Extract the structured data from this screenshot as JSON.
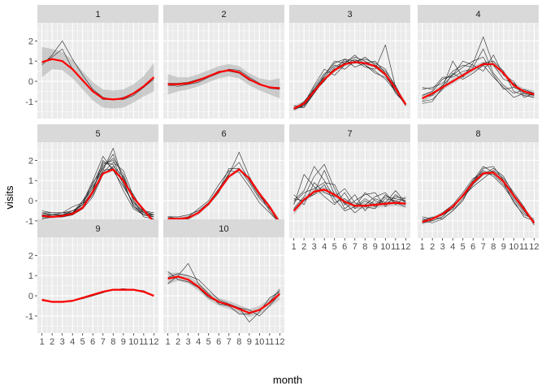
{
  "chart_data": {
    "type": "line",
    "layout": "facet_wrap",
    "xlabel": "month",
    "ylabel": "visits",
    "x": [
      1,
      2,
      3,
      4,
      5,
      6,
      7,
      8,
      9,
      10,
      11,
      12
    ],
    "x_tick_labels": [
      "1",
      "2",
      "3",
      "4",
      "5",
      "6",
      "7",
      "8",
      "9",
      "10",
      "11",
      "12"
    ],
    "y_ticks": [
      -1,
      0,
      1,
      2
    ],
    "ylim": [
      -1.85,
      2.9
    ],
    "xlim": [
      0.55,
      12.45
    ],
    "grid": true,
    "colors": {
      "panel_bg": "#ebebeb",
      "grid": "#ffffff",
      "strip_bg": "#d9d9d9",
      "individual_line": "#262626",
      "smooth_line": "#ff0000",
      "ribbon": "#b3b3b3"
    },
    "panels": [
      {
        "label": "1",
        "individual_lines": [
          [
            0.8,
            1.3,
            2.0,
            1.1,
            0.3,
            -0.4,
            -0.8,
            -0.9,
            -0.9,
            -0.7,
            -0.3,
            0.2
          ],
          [
            0.9,
            1.2,
            1.6,
            0.6,
            0.0,
            -0.5,
            -0.9,
            -0.9,
            -0.8,
            -0.6,
            -0.3,
            0.1
          ]
        ],
        "smooth": [
          0.95,
          1.1,
          1.0,
          0.6,
          0.05,
          -0.5,
          -0.85,
          -0.9,
          -0.85,
          -0.6,
          -0.25,
          0.2
        ],
        "ribbon_halfwidth": [
          0.75,
          0.5,
          0.45,
          0.45,
          0.45,
          0.45,
          0.45,
          0.45,
          0.45,
          0.45,
          0.5,
          0.7
        ]
      },
      {
        "label": "2",
        "individual_lines": [
          [
            -0.2,
            -0.25,
            -0.15,
            -0.05,
            0.2,
            0.4,
            0.6,
            0.55,
            0.2,
            -0.1,
            -0.35,
            -0.4
          ],
          [
            -0.1,
            -0.1,
            -0.05,
            0.1,
            0.25,
            0.5,
            0.5,
            0.4,
            0.05,
            -0.15,
            -0.3,
            -0.3
          ]
        ],
        "smooth": [
          -0.15,
          -0.15,
          -0.1,
          0.05,
          0.25,
          0.45,
          0.55,
          0.45,
          0.1,
          -0.15,
          -0.3,
          -0.35
        ],
        "ribbon_halfwidth": [
          0.5,
          0.35,
          0.3,
          0.3,
          0.3,
          0.3,
          0.3,
          0.3,
          0.3,
          0.3,
          0.35,
          0.5
        ]
      },
      {
        "label": "3",
        "individual_lines": [
          [
            -1.4,
            -1.2,
            -0.4,
            0.3,
            0.9,
            1.1,
            1.0,
            0.7,
            0.6,
            1.8,
            -0.3,
            -1.2
          ],
          [
            -1.3,
            -1.3,
            -0.6,
            0.1,
            0.6,
            0.9,
            1.2,
            1.0,
            0.7,
            0.3,
            -0.5,
            -1.2
          ],
          [
            -1.4,
            -1.1,
            -0.2,
            0.6,
            0.3,
            0.8,
            1.1,
            0.8,
            0.4,
            0.2,
            -0.4,
            -1.1
          ],
          [
            -1.2,
            -1.3,
            -0.5,
            0.0,
            0.7,
            1.0,
            0.9,
            1.2,
            0.8,
            0.5,
            -0.2,
            -1.2
          ],
          [
            -1.3,
            -1.2,
            -0.3,
            0.4,
            0.5,
            1.1,
            0.7,
            0.9,
            1.0,
            0.4,
            -0.6,
            -1.1
          ],
          [
            -1.4,
            -1.0,
            -0.4,
            0.2,
            0.8,
            0.6,
            1.0,
            1.1,
            0.9,
            0.6,
            -0.3,
            -1.2
          ],
          [
            -1.3,
            -1.2,
            -0.6,
            0.3,
            1.0,
            0.9,
            1.3,
            0.8,
            0.5,
            0.1,
            -0.5,
            -1.15
          ]
        ],
        "smooth": [
          -1.35,
          -1.1,
          -0.5,
          0.1,
          0.55,
          0.85,
          0.95,
          0.9,
          0.75,
          0.35,
          -0.35,
          -1.15
        ],
        "ribbon_halfwidth": [
          0.15,
          0.12,
          0.1,
          0.1,
          0.1,
          0.1,
          0.1,
          0.1,
          0.1,
          0.1,
          0.12,
          0.15
        ]
      },
      {
        "label": "4",
        "individual_lines": [
          [
            -1.1,
            -1.0,
            -0.3,
            1.0,
            0.2,
            0.9,
            2.2,
            0.8,
            0.1,
            -0.1,
            -0.6,
            -0.7
          ],
          [
            -0.8,
            -0.7,
            -0.2,
            0.3,
            0.7,
            1.0,
            1.2,
            0.3,
            -0.4,
            -0.3,
            -0.5,
            -0.6
          ],
          [
            -0.3,
            -0.4,
            0.2,
            0.2,
            0.5,
            0.6,
            0.9,
            1.0,
            0.5,
            -0.5,
            -0.7,
            -0.8
          ],
          [
            -0.4,
            -0.3,
            -0.1,
            0.5,
            0.8,
            0.7,
            1.6,
            0.4,
            -0.2,
            -0.6,
            -0.4,
            -0.6
          ],
          [
            -1.0,
            -0.9,
            -0.4,
            0.4,
            0.1,
            0.4,
            0.8,
            0.2,
            -0.3,
            -0.8,
            -0.6,
            -0.7
          ],
          [
            -0.7,
            -0.5,
            0.1,
            0.3,
            1.0,
            0.8,
            0.5,
            1.3,
            0.3,
            0.0,
            -0.8,
            -0.6
          ]
        ],
        "smooth": [
          -0.85,
          -0.6,
          -0.3,
          0.0,
          0.3,
          0.6,
          0.85,
          0.85,
          0.4,
          -0.2,
          -0.5,
          -0.65
        ],
        "ribbon_halfwidth": [
          0.2,
          0.15,
          0.13,
          0.13,
          0.13,
          0.13,
          0.13,
          0.13,
          0.13,
          0.13,
          0.15,
          0.2
        ]
      },
      {
        "label": "5",
        "individual_lines": [
          [
            -0.6,
            -0.6,
            -0.6,
            -0.5,
            -0.2,
            0.4,
            1.5,
            2.6,
            1.0,
            -0.3,
            -0.6,
            -0.7
          ],
          [
            -0.8,
            -0.7,
            -0.7,
            -0.6,
            -0.1,
            0.6,
            1.7,
            2.1,
            1.3,
            0.0,
            -0.6,
            -0.7
          ],
          [
            -0.7,
            -0.8,
            -0.7,
            -0.6,
            0.0,
            0.8,
            1.9,
            1.8,
            0.8,
            -0.2,
            -0.7,
            -0.8
          ],
          [
            -0.9,
            -0.8,
            -0.7,
            -0.6,
            -0.3,
            0.5,
            2.0,
            1.6,
            0.5,
            -0.4,
            -0.7,
            -0.8
          ],
          [
            -0.6,
            -0.7,
            -0.7,
            -0.5,
            -0.2,
            0.9,
            1.6,
            2.3,
            1.1,
            0.1,
            -0.5,
            -0.6
          ],
          [
            -0.8,
            -0.8,
            -0.8,
            -0.7,
            -0.3,
            0.3,
            1.4,
            1.9,
            1.5,
            0.2,
            -0.5,
            -0.7
          ],
          [
            -0.7,
            -0.7,
            -0.6,
            -0.6,
            -0.1,
            1.0,
            2.2,
            1.5,
            0.7,
            -0.1,
            -0.6,
            -0.8
          ],
          [
            -0.6,
            -0.7,
            -0.7,
            -0.6,
            -0.2,
            0.5,
            1.8,
            2.0,
            0.9,
            -0.3,
            -0.7,
            -0.7
          ],
          [
            -0.9,
            -0.8,
            -0.8,
            -0.7,
            -0.4,
            0.2,
            1.3,
            1.7,
            1.2,
            0.0,
            -0.8,
            -0.9
          ],
          [
            -0.5,
            -0.6,
            -0.6,
            -0.3,
            -0.1,
            0.7,
            1.5,
            1.6,
            1.0,
            0.3,
            -0.6,
            -0.7
          ]
        ],
        "smooth": [
          -0.75,
          -0.8,
          -0.75,
          -0.65,
          -0.35,
          0.45,
          1.35,
          1.55,
          1.0,
          0.15,
          -0.45,
          -1.05
        ],
        "ribbon_halfwidth": [
          0.12,
          0.1,
          0.08,
          0.08,
          0.08,
          0.08,
          0.08,
          0.08,
          0.08,
          0.08,
          0.1,
          0.12
        ]
      },
      {
        "label": "6",
        "individual_lines": [
          [
            -0.8,
            -0.8,
            -0.7,
            -0.5,
            -0.1,
            0.6,
            1.3,
            2.4,
            1.2,
            0.3,
            -0.5,
            -1.1
          ],
          [
            -0.9,
            -0.9,
            -0.8,
            -0.6,
            -0.2,
            0.5,
            1.6,
            1.6,
            0.9,
            0.1,
            -0.4,
            -1.0
          ],
          [
            -1.0,
            -1.0,
            -0.8,
            -0.4,
            0.0,
            0.8,
            1.5,
            1.4,
            0.7,
            -0.1,
            -0.6,
            -1.1
          ],
          [
            -0.8,
            -0.9,
            -0.9,
            -0.6,
            -0.2,
            0.4,
            1.4,
            1.9,
            1.0,
            0.2,
            -0.3,
            -1.05
          ]
        ],
        "smooth": [
          -0.9,
          -0.9,
          -0.85,
          -0.6,
          -0.15,
          0.5,
          1.2,
          1.55,
          1.1,
          0.35,
          -0.3,
          -1.1
        ],
        "ribbon_halfwidth": [
          0.15,
          0.1,
          0.1,
          0.1,
          0.1,
          0.1,
          0.1,
          0.1,
          0.1,
          0.1,
          0.12,
          0.15
        ]
      },
      {
        "label": "7",
        "individual_lines": [
          [
            0.0,
            0.5,
            1.7,
            1.0,
            0.1,
            -0.5,
            -0.3,
            0.1,
            -0.2,
            0.2,
            0.1,
            0.0
          ],
          [
            -0.4,
            0.2,
            1.2,
            1.8,
            0.6,
            -0.4,
            0.0,
            0.3,
            0.4,
            -0.3,
            0.3,
            -0.1
          ],
          [
            0.1,
            0.0,
            0.4,
            1.5,
            0.3,
            -0.1,
            -0.6,
            -0.2,
            0.2,
            0.4,
            -0.2,
            0.2
          ],
          [
            -0.2,
            1.3,
            0.7,
            0.2,
            -0.2,
            0.4,
            -0.4,
            0.0,
            -0.3,
            0.1,
            0.0,
            -0.2
          ],
          [
            -0.1,
            0.4,
            0.6,
            0.9,
            0.8,
            -0.2,
            0.3,
            -0.5,
            0.1,
            -0.1,
            0.5,
            -0.1
          ],
          [
            0.3,
            -0.2,
            0.9,
            0.4,
            0.2,
            0.6,
            -0.1,
            -0.3,
            -0.4,
            0.3,
            -0.1,
            -0.3
          ],
          [
            -0.5,
            0.1,
            0.3,
            0.8,
            -0.1,
            0.1,
            -0.3,
            0.4,
            0.0,
            -0.2,
            0.2,
            0.1
          ]
        ],
        "smooth": [
          -0.5,
          0.05,
          0.45,
          0.55,
          0.3,
          -0.05,
          -0.25,
          -0.25,
          -0.2,
          -0.15,
          -0.1,
          -0.15
        ],
        "ribbon_halfwidth": [
          0.2,
          0.15,
          0.15,
          0.15,
          0.15,
          0.15,
          0.15,
          0.15,
          0.15,
          0.15,
          0.15,
          0.2
        ]
      },
      {
        "label": "8",
        "individual_lines": [
          [
            -0.9,
            -1.0,
            -0.8,
            -0.3,
            0.2,
            0.9,
            1.6,
            1.7,
            1.0,
            0.2,
            -0.5,
            -1.1
          ],
          [
            -1.1,
            -0.9,
            -0.6,
            -0.2,
            0.4,
            1.1,
            1.4,
            1.3,
            0.8,
            0.1,
            -0.6,
            -1.0
          ],
          [
            -1.0,
            -1.1,
            -0.9,
            -0.5,
            0.1,
            0.8,
            1.3,
            1.6,
            1.2,
            0.3,
            -0.4,
            -1.1
          ],
          [
            -0.8,
            -0.9,
            -0.7,
            -0.4,
            0.3,
            1.0,
            1.7,
            1.4,
            0.9,
            -0.1,
            -0.7,
            -0.9
          ],
          [
            -1.1,
            -1.0,
            -0.8,
            -0.3,
            0.2,
            0.7,
            1.1,
            1.5,
            1.1,
            0.4,
            -0.3,
            -1.2
          ],
          [
            -1.0,
            -0.8,
            -0.9,
            -0.5,
            0.0,
            1.0,
            1.5,
            1.2,
            0.7,
            0.0,
            -0.8,
            -1.0
          ]
        ],
        "smooth": [
          -1.05,
          -0.9,
          -0.65,
          -0.3,
          0.25,
          0.9,
          1.35,
          1.4,
          0.95,
          0.25,
          -0.4,
          -1.1
        ],
        "ribbon_halfwidth": [
          0.15,
          0.1,
          0.1,
          0.1,
          0.1,
          0.1,
          0.1,
          0.1,
          0.1,
          0.1,
          0.12,
          0.15
        ]
      },
      {
        "label": "9",
        "individual_lines": [
          [
            -0.25,
            -0.3,
            -0.3,
            -0.25,
            -0.15,
            0.0,
            0.15,
            0.3,
            0.35,
            0.3,
            0.25,
            0.0
          ]
        ],
        "smooth": [
          -0.2,
          -0.3,
          -0.3,
          -0.25,
          -0.1,
          0.05,
          0.2,
          0.3,
          0.3,
          0.3,
          0.2,
          0.0
        ],
        "ribbon_halfwidth": [
          0.06,
          0.05,
          0.05,
          0.05,
          0.05,
          0.05,
          0.05,
          0.05,
          0.05,
          0.05,
          0.05,
          0.06
        ]
      },
      {
        "label": "10",
        "individual_lines": [
          [
            0.6,
            1.0,
            1.6,
            0.6,
            0.1,
            -0.4,
            -0.5,
            -0.6,
            -1.3,
            -0.8,
            -0.1,
            0.2
          ],
          [
            1.2,
            0.8,
            0.7,
            0.4,
            -0.1,
            -0.3,
            -0.5,
            -0.9,
            -0.9,
            -0.7,
            -0.3,
            0.3
          ],
          [
            0.9,
            1.1,
            1.0,
            0.8,
            0.3,
            -0.2,
            -0.4,
            -0.6,
            -0.7,
            -1.0,
            -0.5,
            0.1
          ]
        ],
        "smooth": [
          0.85,
          0.95,
          0.8,
          0.45,
          0.0,
          -0.3,
          -0.45,
          -0.65,
          -0.85,
          -0.7,
          -0.35,
          0.1
        ],
        "ribbon_halfwidth": [
          0.3,
          0.2,
          0.2,
          0.2,
          0.2,
          0.2,
          0.2,
          0.2,
          0.2,
          0.2,
          0.2,
          0.3
        ]
      }
    ]
  }
}
